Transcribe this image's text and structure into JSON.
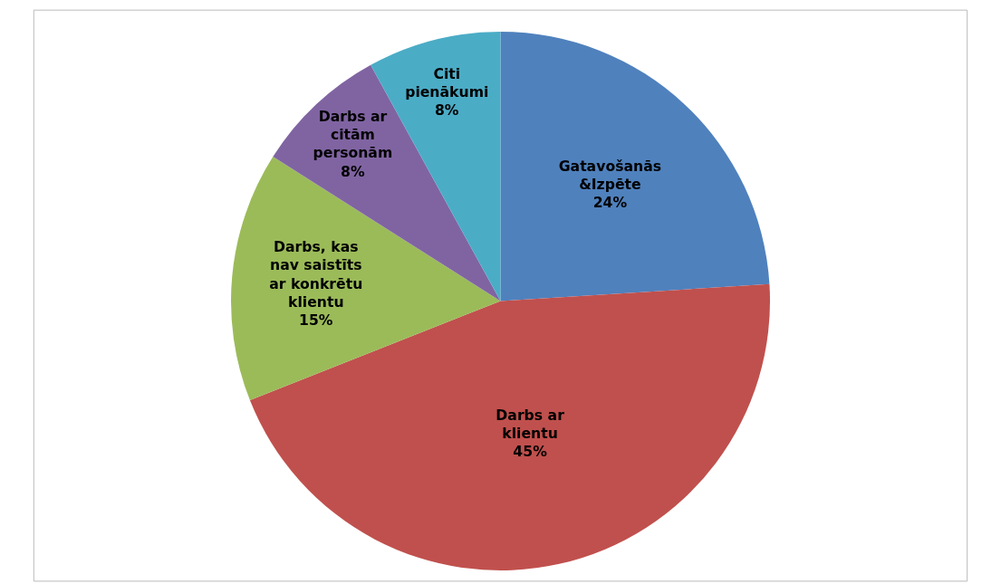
{
  "chart_data": {
    "type": "pie",
    "categories": [
      "Gatavošanās &Izpēte",
      "Darbs ar klientu",
      "Darbs, kas nav saistīts ar konkrētu klientu",
      "Darbs ar citām personām",
      "Citi pienākumi"
    ],
    "values": [
      24,
      45,
      15,
      8,
      8
    ],
    "colors": [
      "#4f81bd",
      "#c0504d",
      "#9bbb59",
      "#8064a2",
      "#4bacc6"
    ],
    "value_labels": [
      "24%",
      "45%",
      "15%",
      "8%",
      "8%"
    ],
    "legend": false
  }
}
